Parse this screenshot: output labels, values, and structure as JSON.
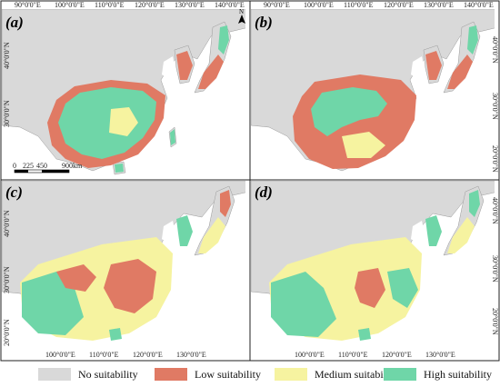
{
  "panels": [
    {
      "label": "(a)",
      "top_ticks": [
        "90°0'0\"E",
        "100°0'0\"E",
        "110°0'0\"E",
        "120°0'0\"E",
        "130°0'0\"E",
        "140°0'0\"E"
      ],
      "left_ticks": [
        "40°0'0\"N",
        "30°0'0\"N",
        "20°0'0\"N"
      ]
    },
    {
      "label": "(b)",
      "top_ticks": [
        "90°0'0\"E",
        "100°0'0\"E",
        "110°0'0\"E",
        "120°0'0\"E",
        "130°0'0\"E",
        "140°0'0\"E"
      ],
      "right_ticks": [
        "40°0'0\"N",
        "30°0'0\"N",
        "20°0'0\"N"
      ]
    },
    {
      "label": "(c)",
      "bottom_ticks": [
        "100°0'0\"E",
        "110°0'0\"E",
        "120°0'0\"E",
        "130°0'0\"E"
      ],
      "left_ticks": [
        "40°0'0\"N",
        "30°0'0\"N",
        "20°0'0\"N"
      ]
    },
    {
      "label": "(d)",
      "bottom_ticks": [
        "100°0'0\"E",
        "110°0'0\"E",
        "120°0'0\"E",
        "130°0'0\"E"
      ],
      "right_ticks": [
        "40°0'0\"N",
        "30°0'0\"N",
        "20°0'0\"N"
      ]
    }
  ],
  "scale_bar": {
    "labels": [
      "0",
      "225",
      "450",
      "900km"
    ]
  },
  "north_arrow": "N",
  "legend": [
    {
      "label": "No suitability",
      "color": "#d9d9d9"
    },
    {
      "label": "Low suitability",
      "color": "#e07a64"
    },
    {
      "label": "Medium suitability",
      "color": "#f6f3a0"
    },
    {
      "label": "High suitability",
      "color": "#6fd6a8"
    }
  ]
}
